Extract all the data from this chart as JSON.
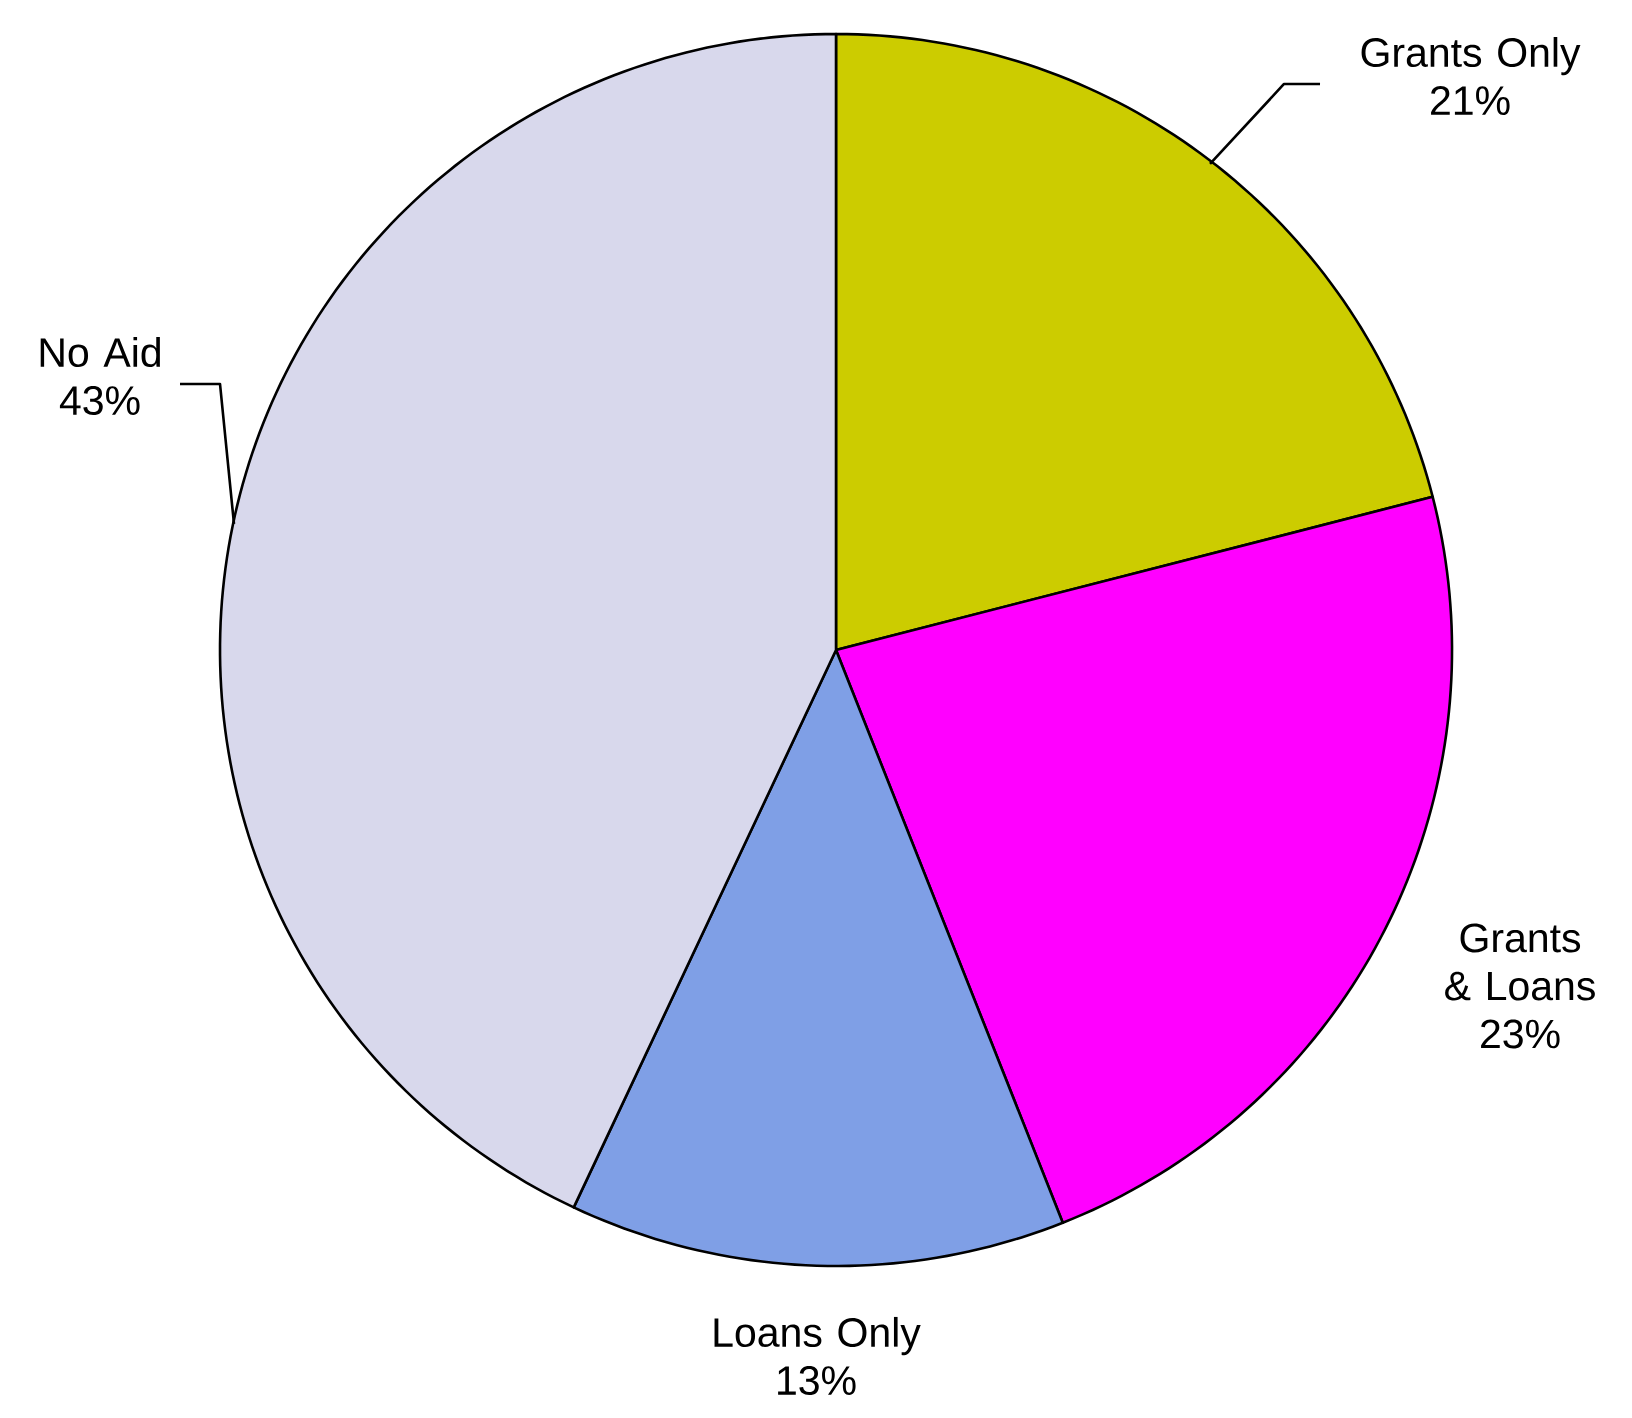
{
  "chart_data": {
    "type": "pie",
    "categories": [
      "Grants Only",
      "Grants & Loans",
      "Loans Only",
      "No Aid"
    ],
    "values": [
      21,
      23,
      13,
      43
    ],
    "value_labels": [
      "21%",
      "23%",
      "13%",
      "43%"
    ],
    "colors": [
      "#cccc00",
      "#ff00ff",
      "#7f9fe6",
      "#d8d8ec"
    ],
    "legend": false
  }
}
